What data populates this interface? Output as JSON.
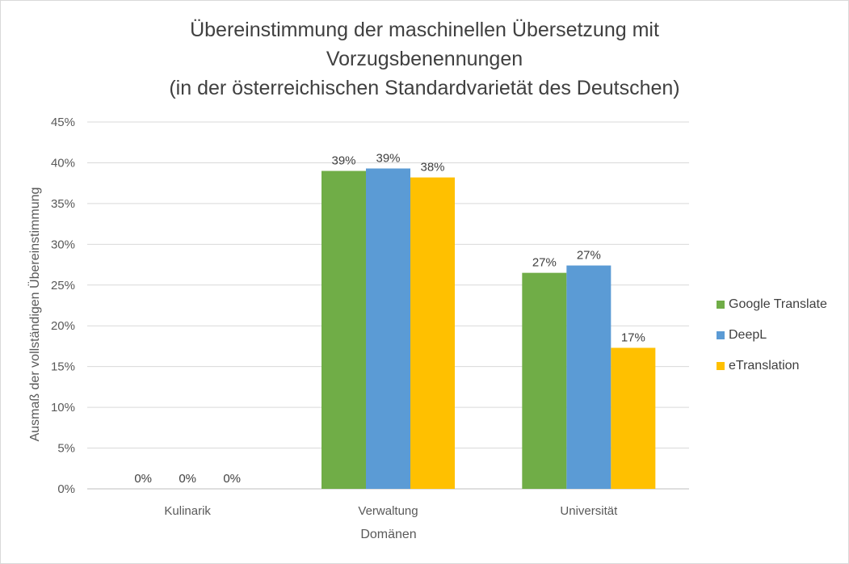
{
  "chart_data": {
    "type": "bar",
    "title": [
      "Übereinstimmung der maschinellen Übersetzung mit",
      "Vorzugsbenennungen",
      "(in der österreichischen Standardvarietät des Deutschen)"
    ],
    "xlabel": "Domänen",
    "ylabel": "Ausmaß der vollständigen Übereinstimmung",
    "categories": [
      "Kulinarik",
      "Verwaltung",
      "Universität"
    ],
    "ylim": [
      0,
      0.45
    ],
    "yticks": [
      "0%",
      "5%",
      "10%",
      "15%",
      "20%",
      "25%",
      "30%",
      "35%",
      "40%",
      "45%"
    ],
    "grid": true,
    "legend_position": "right",
    "series": [
      {
        "name": "Google Translate",
        "color": "#70ad47",
        "values": [
          0,
          0.39,
          0.265
        ],
        "labels": [
          "0%",
          "39%",
          "27%"
        ]
      },
      {
        "name": "DeepL",
        "color": "#5b9bd5",
        "values": [
          0,
          0.393,
          0.274
        ],
        "labels": [
          "0%",
          "39%",
          "27%"
        ]
      },
      {
        "name": "eTranslation",
        "color": "#ffc000",
        "values": [
          0,
          0.382,
          0.173
        ],
        "labels": [
          "0%",
          "38%",
          "17%"
        ]
      }
    ]
  }
}
